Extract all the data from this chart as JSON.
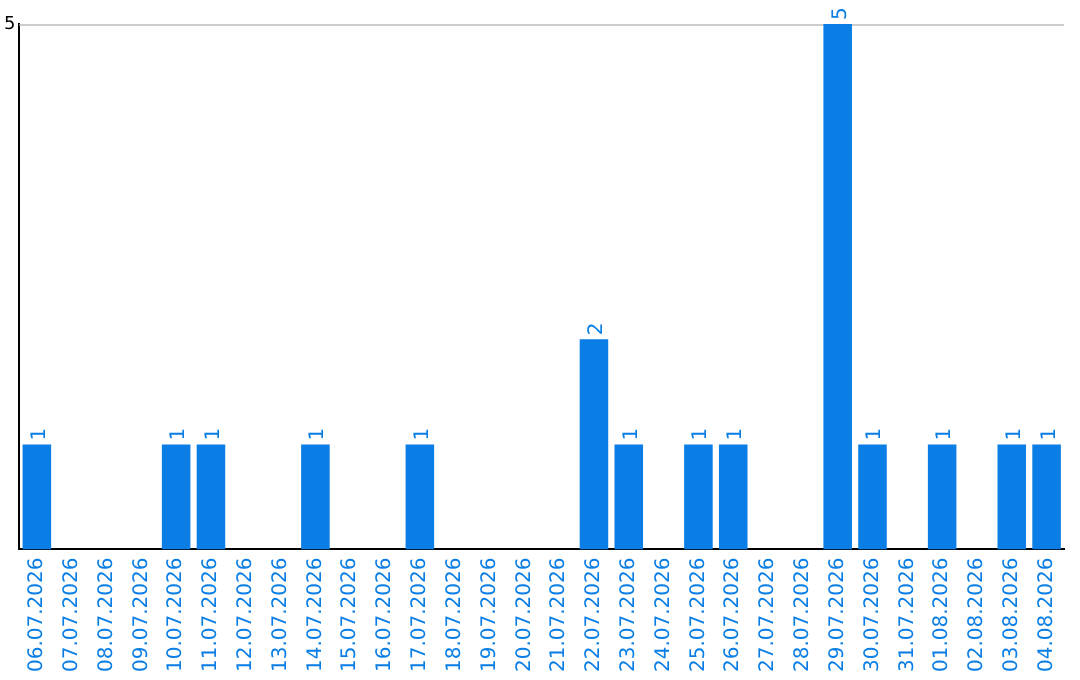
{
  "chart_data": {
    "type": "bar",
    "categories": [
      "06.07.2026",
      "07.07.2026",
      "08.07.2026",
      "09.07.2026",
      "10.07.2026",
      "11.07.2026",
      "12.07.2026",
      "13.07.2026",
      "14.07.2026",
      "15.07.2026",
      "16.07.2026",
      "17.07.2026",
      "18.07.2026",
      "19.07.2026",
      "20.07.2026",
      "21.07.2026",
      "22.07.2026",
      "23.07.2026",
      "24.07.2026",
      "25.07.2026",
      "26.07.2026",
      "27.07.2026",
      "28.07.2026",
      "29.07.2026",
      "30.07.2026",
      "31.07.2026",
      "01.08.2026",
      "02.08.2026",
      "03.08.2026",
      "04.08.2026"
    ],
    "values": [
      1,
      0,
      0,
      0,
      1,
      1,
      0,
      0,
      1,
      0,
      0,
      1,
      0,
      0,
      0,
      0,
      2,
      1,
      0,
      1,
      1,
      0,
      0,
      5,
      1,
      0,
      1,
      0,
      1,
      1
    ],
    "value_labels": [
      "1",
      null,
      null,
      null,
      "1",
      "1",
      null,
      null,
      "1",
      null,
      null,
      "1",
      null,
      null,
      null,
      null,
      "2",
      "1",
      null,
      "1",
      "1",
      null,
      null,
      "5",
      "1",
      null,
      "1",
      null,
      "1",
      "1"
    ],
    "color": "#0a7ee4",
    "ylim": [
      0,
      5
    ],
    "yticks": [
      5
    ],
    "grid": false
  }
}
